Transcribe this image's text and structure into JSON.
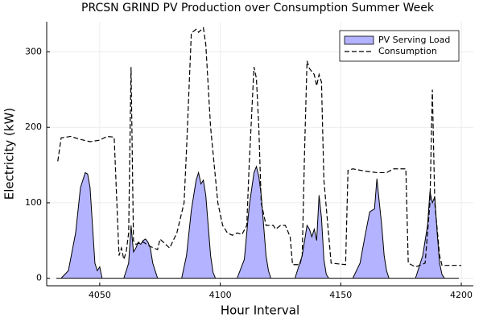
{
  "chart_data": {
    "type": "line",
    "title": "PRCSN GRIND PV Production over Consumption Summer Week",
    "xlabel": "Hour Interval",
    "ylabel": "Electricity (kW)",
    "xlim": [
      4028,
      4205
    ],
    "ylim": [
      -10,
      340
    ],
    "xticks": [
      4050,
      4100,
      4150,
      4200
    ],
    "yticks": [
      0,
      100,
      200,
      300
    ],
    "grid": true,
    "legend": "top-right",
    "series": [
      {
        "name": "PV Serving Load",
        "style": "area",
        "color": "#b3b3ff",
        "x": [
          4032,
          4034,
          4037,
          4040,
          4042,
          4044,
          4045,
          4046,
          4047,
          4048,
          4049,
          4050,
          4051,
          4060,
          4062,
          4063,
          4064,
          4065,
          4066,
          4067,
          4068,
          4069,
          4070,
          4071,
          4072,
          4074,
          4084,
          4086,
          4088,
          4090,
          4091,
          4092,
          4093,
          4094,
          4095,
          4096,
          4097,
          4098,
          4107,
          4110,
          4112,
          4114,
          4115,
          4116,
          4117,
          4118,
          4119,
          4120,
          4121,
          4131,
          4134,
          4136,
          4137,
          4138,
          4139,
          4140,
          4141,
          4142,
          4143,
          4144,
          4145,
          4155,
          4158,
          4160,
          4162,
          4164,
          4165,
          4166,
          4167,
          4168,
          4169,
          4170,
          4181,
          4184,
          4186,
          4187,
          4188,
          4189,
          4190,
          4191,
          4192,
          4193,
          4199
        ],
        "values": [
          0,
          0,
          10,
          60,
          120,
          140,
          138,
          120,
          70,
          20,
          10,
          15,
          0,
          0,
          20,
          70,
          35,
          40,
          48,
          45,
          50,
          52,
          48,
          40,
          20,
          0,
          0,
          30,
          90,
          130,
          140,
          125,
          130,
          110,
          70,
          30,
          8,
          0,
          0,
          25,
          95,
          140,
          148,
          135,
          110,
          70,
          30,
          10,
          0,
          0,
          30,
          70,
          65,
          55,
          65,
          50,
          110,
          80,
          25,
          5,
          0,
          0,
          20,
          55,
          88,
          92,
          132,
          100,
          70,
          30,
          10,
          0,
          0,
          30,
          70,
          115,
          100,
          108,
          60,
          20,
          5,
          0,
          0
        ]
      },
      {
        "name": "Consumption",
        "style": "dash",
        "color": "#000000",
        "x": [
          4032.6,
          4034,
          4038,
          4042,
          4046,
          4050,
          4053,
          4056,
          4058,
          4059,
          4060,
          4061,
          4062,
          4063,
          4064,
          4065,
          4068,
          4071,
          4074,
          4075,
          4079,
          4082,
          4085,
          4086,
          4088,
          4090,
          4091,
          4093,
          4094,
          4096,
          4099,
          4101,
          4103,
          4105,
          4107,
          4109,
          4111,
          4112,
          4114,
          4115,
          4116,
          4117,
          4119,
          4122,
          4123,
          4125,
          4127,
          4129,
          4130,
          4133,
          4134,
          4135,
          4136,
          4137,
          4139,
          4140,
          4141,
          4142,
          4143,
          4146,
          4152,
          4153,
          4155,
          4160,
          4165,
          4169,
          4172,
          4176,
          4177,
          4178,
          4181,
          4185,
          4187,
          4188,
          4189,
          4191,
          4192,
          4200
        ],
        "values": [
          155,
          186,
          188,
          184,
          181,
          183,
          188,
          187,
          30,
          40,
          25,
          35,
          60,
          280,
          50,
          45,
          48,
          42,
          38,
          52,
          40,
          60,
          100,
          170,
          325,
          330,
          326,
          332,
          310,
          200,
          100,
          70,
          60,
          57,
          60,
          58,
          70,
          150,
          280,
          265,
          200,
          100,
          70,
          70,
          65,
          70,
          70,
          55,
          18,
          18,
          30,
          170,
          288,
          278,
          270,
          255,
          270,
          260,
          130,
          20,
          18,
          143,
          145,
          142,
          140,
          140,
          145,
          145,
          145,
          20,
          15,
          20,
          100,
          250,
          100,
          30,
          17,
          17
        ]
      }
    ]
  }
}
